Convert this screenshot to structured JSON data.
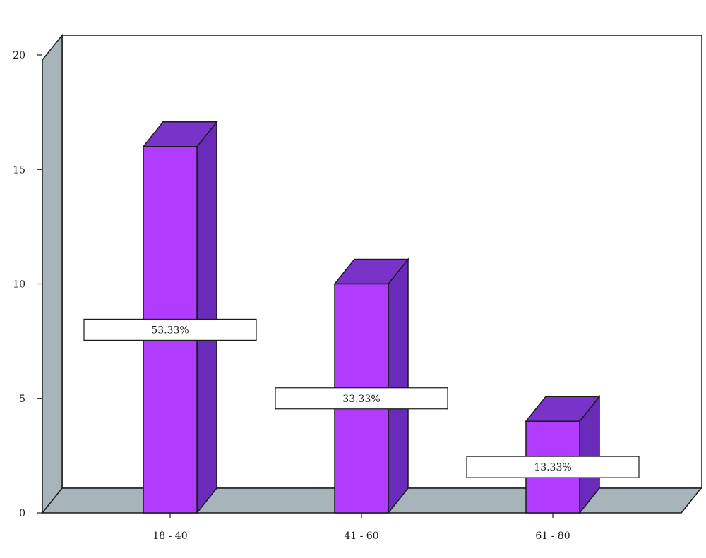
{
  "chart_data": {
    "type": "bar",
    "title": "",
    "xlabel": "",
    "ylabel": "",
    "categories": [
      "18 - 40",
      "41 - 60",
      "61 - 80"
    ],
    "values": [
      16,
      10,
      4
    ],
    "data_labels": [
      "53.33%",
      "33.33%",
      "13.33%"
    ],
    "ylim": [
      0,
      20
    ],
    "yticks": [
      "0",
      "5",
      "10",
      "15",
      "20"
    ],
    "grid": false,
    "legend": "none",
    "style": "3d"
  },
  "colors": {
    "bar_front": "#b03cff",
    "bar_top": "#7a33c9",
    "bar_side": "#6a2bb8",
    "wall": "#ffffff",
    "wall_side": "#a7b5bb",
    "floor": "#a7b5bb",
    "outline": "#1a1a1a",
    "label_box": "#ffffff"
  }
}
